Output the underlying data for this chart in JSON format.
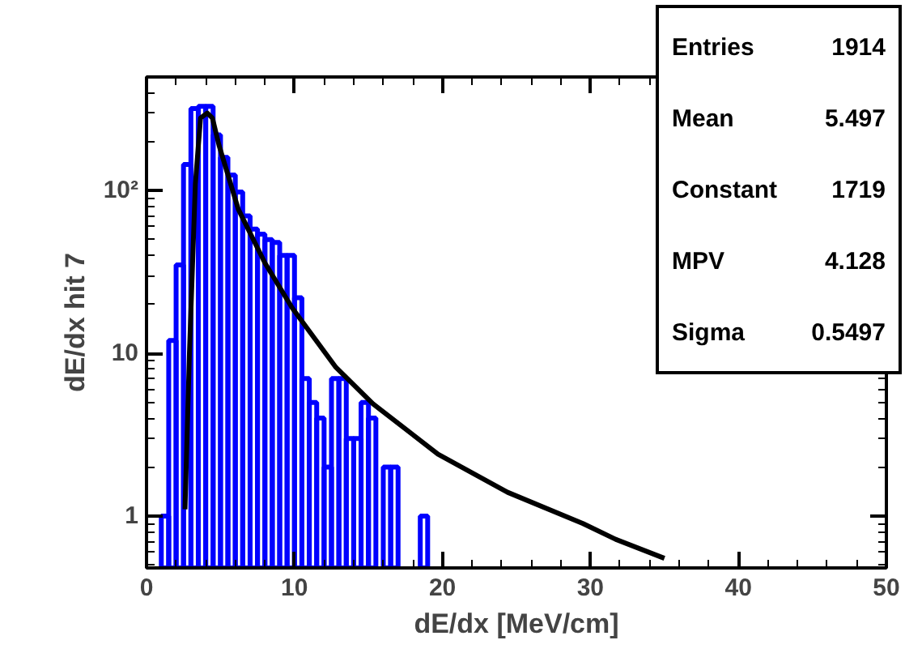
{
  "chart_data": {
    "type": "histogram",
    "xlabel": "dE/dx [MeV/cm]",
    "ylabel": "dE/dx hit 7",
    "log": "y",
    "grid": false,
    "xlim": [
      0,
      50
    ],
    "xticks": [
      0,
      10,
      20,
      30,
      40,
      50
    ],
    "ylim": [
      0.48,
      500
    ],
    "yticks": [
      1,
      10,
      {
        "value": 100,
        "label": "10²"
      }
    ],
    "bins": [
      1,
      1.5,
      2,
      2.5,
      3,
      3.5,
      4,
      4.5,
      5,
      5.5,
      6,
      6.5,
      7,
      7.5,
      8,
      8.5,
      9,
      9.5,
      10,
      10.5,
      11,
      11.5,
      12,
      12.5,
      13,
      13.5,
      14,
      14.5,
      15,
      15.5,
      16,
      16.5,
      17,
      17.5,
      18,
      18.5,
      19
    ],
    "values": [
      1,
      12,
      35,
      145,
      320,
      330,
      330,
      220,
      160,
      125,
      98,
      70,
      58,
      54,
      50,
      48,
      40,
      40,
      22,
      7,
      5,
      4,
      2,
      7,
      7,
      3,
      3,
      5,
      4,
      null,
      2,
      2,
      null,
      null,
      null,
      1
    ],
    "color": "#0000ff",
    "series": [
      {
        "type": "line",
        "color": "#000000",
        "x": [
          2.6,
          2.9,
          3.3,
          3.65,
          4.1,
          4.45,
          4.9,
          6.2,
          8,
          9.85,
          12.8,
          15.3,
          19.7,
          24.4,
          29.5,
          31.7,
          35
        ],
        "values": [
          1.1,
          10,
          110,
          280,
          300,
          280,
          190,
          77,
          36,
          19,
          8.2,
          4.9,
          2.4,
          1.4,
          0.9,
          0.72,
          0.55
        ]
      }
    ],
    "annotations": [
      "Entries 1914",
      "Mean 5.497",
      "Constant 1719",
      "MPV 4.128",
      "Sigma 0.5497"
    ]
  }
}
